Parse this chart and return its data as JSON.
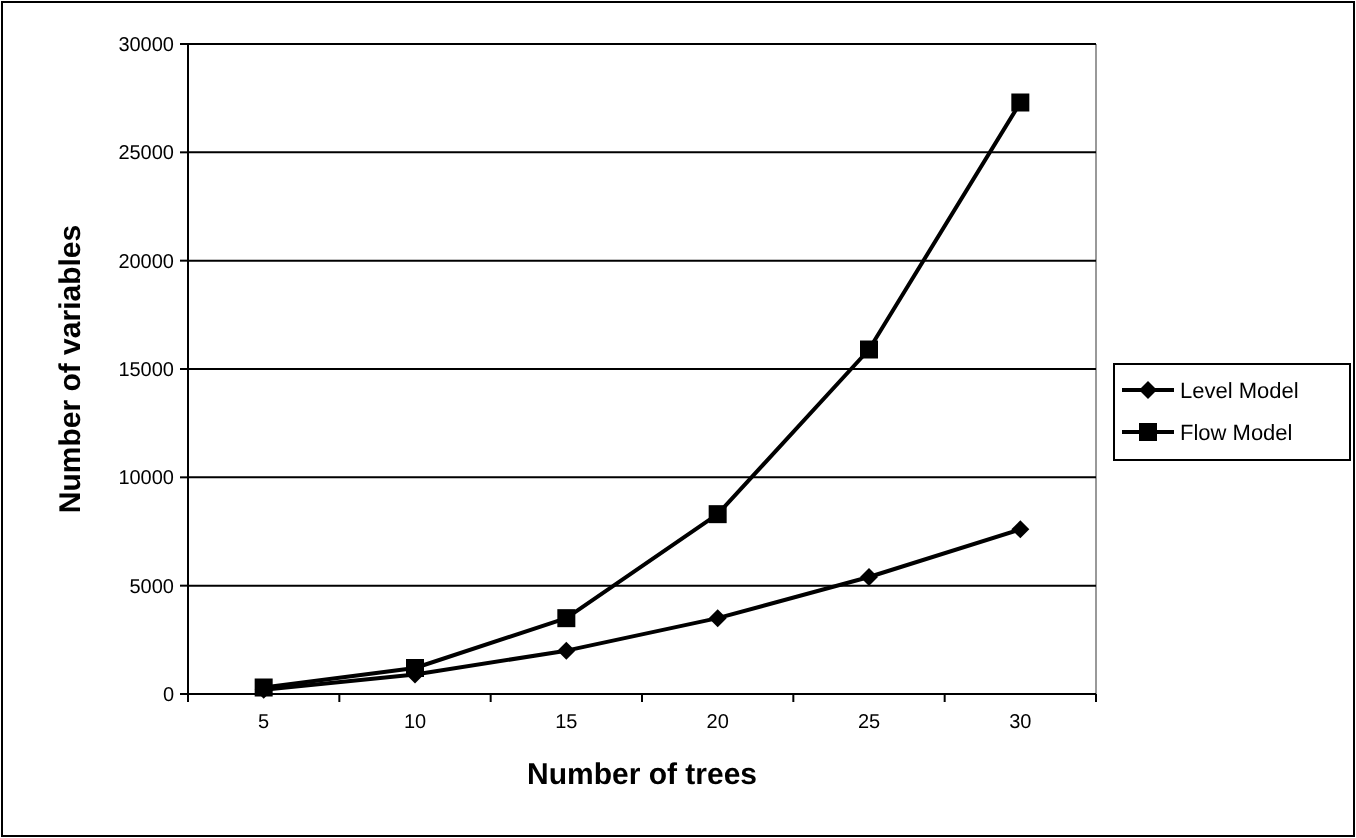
{
  "chart_data": {
    "type": "line",
    "xlabel": "Number of trees",
    "ylabel": "Number of variables",
    "categories": [
      "5",
      "10",
      "15",
      "20",
      "25",
      "30"
    ],
    "series": [
      {
        "name": "Level Model",
        "color": "#000000",
        "marker": "diamond",
        "values": [
          200,
          900,
          2000,
          3500,
          5400,
          7600
        ]
      },
      {
        "name": "Flow Model",
        "color": "#000000",
        "marker": "square",
        "values": [
          300,
          1200,
          3500,
          8300,
          15900,
          27300
        ]
      }
    ],
    "ylim": [
      0,
      30000
    ],
    "yticks": [
      0,
      5000,
      10000,
      15000,
      20000,
      25000,
      30000
    ],
    "grid": "y",
    "legend": "right",
    "line_style": "solid"
  }
}
